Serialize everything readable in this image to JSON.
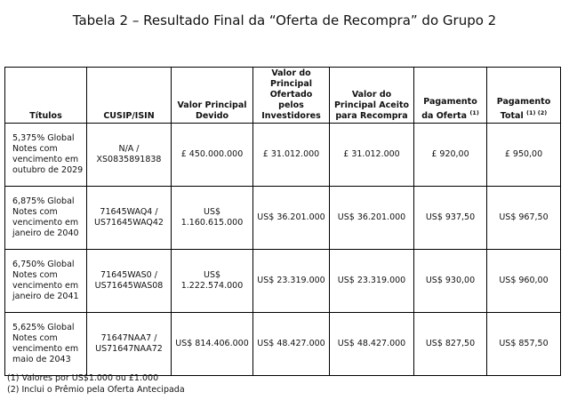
{
  "title": "Tabela 2 – Resultado Final da “Oferta de Recompra” do Grupo 2",
  "table": {
    "header": [
      {
        "text": "Títulos"
      },
      {
        "text": "CUSIP/ISIN"
      },
      {
        "text": "Valor Principal Devido"
      },
      {
        "text": "Valor do Principal Ofertado pelos Investidores"
      },
      {
        "text": "Valor do Principal Aceito para Recompra"
      },
      {
        "text": "Pagamento da Oferta",
        "sup": "(1)"
      },
      {
        "text": "Pagamento Total",
        "sup": "(1) (2)"
      }
    ],
    "rows": [
      [
        "5,375% Global Notes com vencimento em outubro de 2029",
        "N/A / XS0835891838",
        "£ 450.000.000",
        "£ 31.012.000",
        "£ 31.012.000",
        "£ 920,00",
        "£ 950,00"
      ],
      [
        "6,875% Global Notes com vencimento em janeiro de 2040",
        "71645WAQ4 / US71645WAQ42",
        "US$ 1.160.615.000",
        "US$ 36.201.000",
        "US$ 36.201.000",
        "US$ 937,50",
        "US$ 967,50"
      ],
      [
        "6,750% Global Notes com vencimento em janeiro de 2041",
        "71645WAS0 / US71645WAS08",
        "US$ 1.222.574.000",
        "US$ 23.319.000",
        "US$ 23.319.000",
        "US$ 930,00",
        "US$ 960,00"
      ],
      [
        "5,625% Global Notes com vencimento em maio de 2043",
        "71647NAA7 / US71647NAA72",
        "US$ 814.406.000",
        "US$ 48.427.000",
        "US$ 48.427.000",
        "US$ 827,50",
        "US$ 857,50"
      ]
    ]
  },
  "footnotes": [
    "(1) Valores por US$1.000 ou £1.000",
    "(2) Inclui o Prêmio pela Oferta Antecipada"
  ]
}
